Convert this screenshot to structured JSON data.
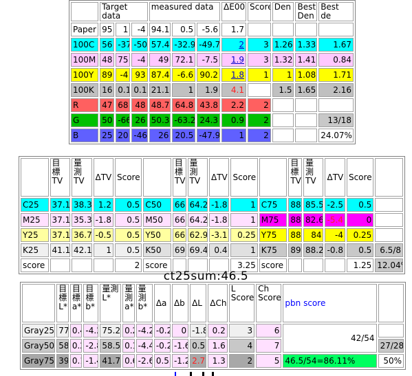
{
  "table1": {
    "headers": [
      "",
      "Target data",
      "measured data",
      "ΔE00",
      "Score",
      "Den",
      "Best Den",
      "Best de"
    ],
    "rows": [
      {
        "label": "Paper",
        "t": [
          "95",
          "1",
          "-4"
        ],
        "m": [
          "94.1",
          "0.5",
          "-5.6"
        ],
        "de": "1.7",
        "score": "",
        "den": "",
        "bden": "",
        "bde": ""
      },
      {
        "label": "100C",
        "t": [
          "56",
          "-37",
          "-50"
        ],
        "m": [
          "57.4",
          "-32.9",
          "-49.7"
        ],
        "de": "2",
        "score": "3",
        "den": "1.26",
        "bden": "1.33",
        "bde": "1.67"
      },
      {
        "label": "100M",
        "t": [
          "48",
          "75",
          "-4"
        ],
        "m": [
          "49",
          "72.1",
          "-7.5"
        ],
        "de": "1.9",
        "score": "3",
        "den": "1.32",
        "bden": "1.41",
        "bde": "0.84"
      },
      {
        "label": "100Y",
        "t": [
          "89",
          "-4",
          "93"
        ],
        "m": [
          "87.4",
          "-6.6",
          "90.2"
        ],
        "de": "1.8",
        "score": "1",
        "den": "1",
        "bden": "1.08",
        "bde": "1.71"
      },
      {
        "label": "100K",
        "t": [
          "16",
          "0.1",
          "0.1"
        ],
        "m": [
          "21.1",
          "1",
          "1.9"
        ],
        "de": "4.1",
        "score": "",
        "den": "1.5",
        "bden": "1.65",
        "bde": "2.16"
      },
      {
        "label": "R",
        "t": [
          "47",
          "68",
          "48"
        ],
        "m": [
          "48.7",
          "64.8",
          "43.8"
        ],
        "de": "2.2",
        "score": "2",
        "den": "",
        "bden": "",
        "bde": ""
      },
      {
        "label": "G",
        "t": [
          "50",
          "-66",
          "26"
        ],
        "m": [
          "50.3",
          "-63.2",
          "24.3"
        ],
        "de": "0.9",
        "score": "2",
        "den": "",
        "bden": "",
        "bde": "13/18"
      },
      {
        "label": "B",
        "t": [
          "25",
          "20",
          "-46"
        ],
        "m": [
          "26",
          "20.5",
          "-47.9"
        ],
        "de": "1",
        "score": "2",
        "den": "",
        "bden": "",
        "bde": "24.07%"
      }
    ]
  },
  "table2": {
    "h_target": "目標TV",
    "h_measured": "量測TV",
    "h_delta": "ΔTV",
    "h_score": "Score",
    "rows": [
      {
        "a": [
          "C25",
          "37.1",
          "38.3",
          "1.2",
          "0.5"
        ],
        "b": [
          "C50",
          "66",
          "64.2",
          "-1.8",
          "1"
        ],
        "c": [
          "C75",
          "88",
          "85.5",
          "-2.5",
          "0.5"
        ],
        "x": ""
      },
      {
        "a": [
          "M25",
          "37.1",
          "35.3",
          "-1.8",
          "0.5"
        ],
        "b": [
          "M50",
          "66",
          "64.2",
          "-1.8",
          "1"
        ],
        "c": [
          "M75",
          "88",
          "82.6",
          "-5.4",
          "0"
        ],
        "x": ""
      },
      {
        "a": [
          "Y25",
          "37.1",
          "36.7",
          "-0.5",
          "0.5"
        ],
        "b": [
          "Y50",
          "66",
          "62.9",
          "-3.1",
          "0.25"
        ],
        "c": [
          "Y75",
          "88",
          "84",
          "-4",
          "0.25"
        ],
        "x": ""
      },
      {
        "a": [
          "K25",
          "41.1",
          "42.1",
          "1",
          "0.5"
        ],
        "b": [
          "K50",
          "69",
          "69.4",
          "0.4",
          "1"
        ],
        "c": [
          "K75",
          "89",
          "88.2",
          "-0.8",
          "0.5"
        ],
        "x": "6.5/8"
      },
      {
        "a": [
          "score",
          "",
          "",
          "",
          "2"
        ],
        "b": [
          "score",
          "",
          "",
          "",
          "3.25"
        ],
        "c": [
          "score",
          "",
          "",
          "",
          "1.25"
        ],
        "x": "12.04%"
      }
    ]
  },
  "ct25sum": "ct25sum:46.5",
  "table3": {
    "headers": [
      "目標L*",
      "目標a*",
      "目標b*",
      "量測L*",
      "量測a*",
      "量測b*",
      "Δa",
      "Δb",
      "ΔL",
      "ΔCh",
      "L Score",
      "Ch Score"
    ],
    "pbn_header": "pbn score",
    "rows": [
      {
        "label": "Gray25",
        "v": [
          "77",
          "0.4",
          "-4.2",
          "75.2",
          "0.2",
          "-4.2",
          "-0.2",
          "0",
          "-1.8",
          "0.2",
          "3",
          "6"
        ]
      },
      {
        "label": "Gray50",
        "v": [
          "58",
          "0.2",
          "-2.8",
          "58.5",
          "0.1",
          "-4.4",
          "-0.2",
          "-1.6",
          "0.5",
          "1.6",
          "4",
          "7"
        ]
      },
      {
        "label": "Gray75",
        "v": [
          "39",
          "0.1",
          "-1.4",
          "41.7",
          "0.6",
          "-2.6",
          "0.5",
          "-1.2",
          "2.7",
          "1.3",
          "2",
          "5"
        ]
      }
    ],
    "pbn_fraction": "42/54",
    "pbn_result": "46.5/54=86.11%",
    "side_fraction": "27/28",
    "side_percent": "50%"
  }
}
